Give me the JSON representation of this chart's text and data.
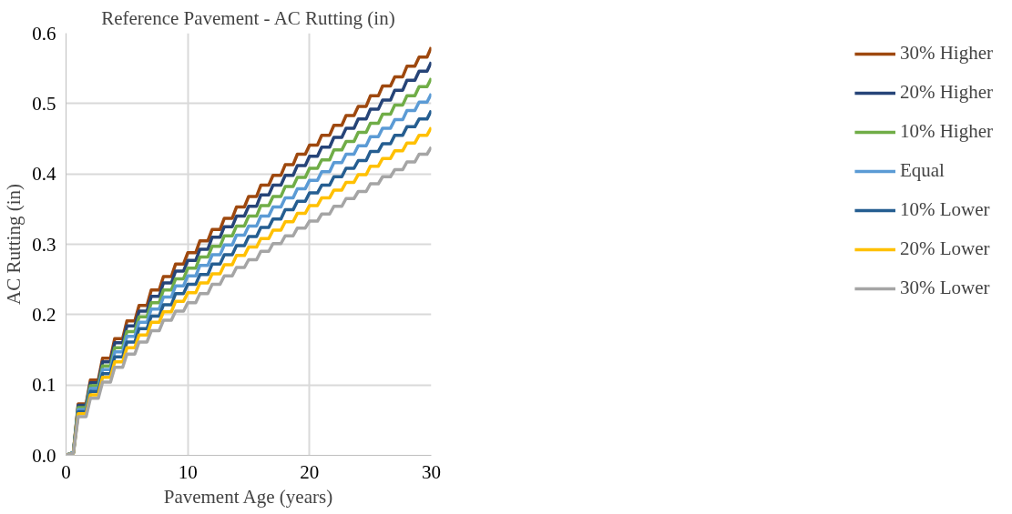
{
  "chart_data": {
    "type": "line",
    "title": "Reference Pavement - AC Rutting (in)",
    "xlabel": "Pavement Age (years)",
    "ylabel": "AC Rutting (in)",
    "x": [
      0,
      0.6,
      1,
      1.65,
      2,
      2.65,
      3,
      3.65,
      4,
      4.65,
      5,
      5.65,
      6,
      6.65,
      7,
      7.65,
      8,
      8.65,
      9,
      9.65,
      10,
      10.65,
      11,
      11.65,
      12,
      12.65,
      13,
      13.65,
      14,
      14.65,
      15,
      15.65,
      16,
      16.65,
      17,
      17.65,
      18,
      18.65,
      19,
      19.65,
      20,
      20.65,
      21,
      21.65,
      22,
      22.65,
      23,
      23.65,
      24,
      24.65,
      25,
      25.65,
      26,
      26.65,
      27,
      27.65,
      28,
      28.65,
      29,
      29.65,
      30
    ],
    "xlim": [
      0,
      30
    ],
    "xticks": [
      0,
      10,
      20,
      30
    ],
    "ylim": [
      0,
      0.6
    ],
    "yticks": [
      {
        "value": 0,
        "label": "0.0"
      },
      {
        "value": 0.1,
        "label": "0.1"
      },
      {
        "value": 0.2,
        "label": "0.2"
      },
      {
        "value": 0.3,
        "label": "0.3"
      },
      {
        "value": 0.4,
        "label": "0.4"
      },
      {
        "value": 0.5,
        "label": "0.5"
      },
      {
        "value": 0.6,
        "label": "0.6"
      }
    ],
    "grid": true,
    "legend": "right",
    "line_style": "solid",
    "marker": "none",
    "series": [
      {
        "name": "30% Higher",
        "color": "#9e480e",
        "values": [
          0,
          0.004,
          0.073,
          0.073,
          0.107,
          0.107,
          0.138,
          0.138,
          0.166,
          0.166,
          0.191,
          0.191,
          0.213,
          0.213,
          0.235,
          0.235,
          0.254,
          0.254,
          0.272,
          0.272,
          0.288,
          0.288,
          0.305,
          0.305,
          0.321,
          0.321,
          0.337,
          0.337,
          0.353,
          0.353,
          0.368,
          0.368,
          0.384,
          0.384,
          0.398,
          0.398,
          0.413,
          0.413,
          0.428,
          0.428,
          0.441,
          0.441,
          0.455,
          0.455,
          0.469,
          0.469,
          0.483,
          0.483,
          0.496,
          0.496,
          0.511,
          0.511,
          0.525,
          0.525,
          0.538,
          0.538,
          0.553,
          0.553,
          0.566,
          0.566,
          0.58
        ]
      },
      {
        "name": "20% Higher",
        "color": "#264478",
        "values": [
          0,
          0.004,
          0.071,
          0.071,
          0.103,
          0.103,
          0.133,
          0.133,
          0.16,
          0.16,
          0.184,
          0.184,
          0.205,
          0.205,
          0.226,
          0.226,
          0.245,
          0.245,
          0.262,
          0.262,
          0.277,
          0.277,
          0.293,
          0.293,
          0.31,
          0.31,
          0.325,
          0.325,
          0.34,
          0.34,
          0.354,
          0.354,
          0.37,
          0.37,
          0.384,
          0.384,
          0.398,
          0.398,
          0.412,
          0.412,
          0.425,
          0.425,
          0.438,
          0.438,
          0.452,
          0.452,
          0.465,
          0.465,
          0.478,
          0.478,
          0.492,
          0.492,
          0.505,
          0.505,
          0.519,
          0.519,
          0.533,
          0.533,
          0.546,
          0.546,
          0.559
        ]
      },
      {
        "name": "10% Higher",
        "color": "#70ad47",
        "values": [
          0,
          0.004,
          0.068,
          0.068,
          0.099,
          0.099,
          0.127,
          0.127,
          0.153,
          0.153,
          0.176,
          0.176,
          0.197,
          0.197,
          0.217,
          0.217,
          0.235,
          0.235,
          0.251,
          0.251,
          0.266,
          0.266,
          0.282,
          0.282,
          0.297,
          0.297,
          0.312,
          0.312,
          0.326,
          0.326,
          0.34,
          0.34,
          0.355,
          0.355,
          0.368,
          0.368,
          0.382,
          0.382,
          0.395,
          0.395,
          0.408,
          0.408,
          0.42,
          0.42,
          0.434,
          0.434,
          0.446,
          0.446,
          0.459,
          0.459,
          0.472,
          0.472,
          0.485,
          0.485,
          0.498,
          0.498,
          0.511,
          0.511,
          0.524,
          0.524,
          0.536
        ]
      },
      {
        "name": "Equal",
        "color": "#5b9bd5",
        "values": [
          0,
          0.004,
          0.065,
          0.065,
          0.095,
          0.095,
          0.122,
          0.122,
          0.147,
          0.147,
          0.169,
          0.169,
          0.189,
          0.189,
          0.208,
          0.208,
          0.225,
          0.225,
          0.241,
          0.241,
          0.255,
          0.255,
          0.27,
          0.27,
          0.285,
          0.285,
          0.299,
          0.299,
          0.313,
          0.313,
          0.326,
          0.326,
          0.34,
          0.34,
          0.353,
          0.353,
          0.366,
          0.366,
          0.379,
          0.379,
          0.391,
          0.391,
          0.403,
          0.403,
          0.416,
          0.416,
          0.428,
          0.428,
          0.44,
          0.44,
          0.453,
          0.453,
          0.465,
          0.465,
          0.477,
          0.477,
          0.49,
          0.49,
          0.502,
          0.502,
          0.514
        ]
      },
      {
        "name": "10% Lower",
        "color": "#255e91",
        "values": [
          0,
          0.003,
          0.062,
          0.062,
          0.091,
          0.091,
          0.116,
          0.116,
          0.14,
          0.14,
          0.161,
          0.161,
          0.18,
          0.18,
          0.198,
          0.198,
          0.214,
          0.214,
          0.23,
          0.23,
          0.243,
          0.243,
          0.257,
          0.257,
          0.272,
          0.272,
          0.285,
          0.285,
          0.298,
          0.298,
          0.311,
          0.311,
          0.324,
          0.324,
          0.336,
          0.336,
          0.349,
          0.349,
          0.361,
          0.361,
          0.373,
          0.373,
          0.384,
          0.384,
          0.396,
          0.396,
          0.408,
          0.408,
          0.419,
          0.419,
          0.432,
          0.432,
          0.443,
          0.443,
          0.455,
          0.455,
          0.467,
          0.467,
          0.478,
          0.478,
          0.49
        ]
      },
      {
        "name": "20% Lower",
        "color": "#ffc000",
        "values": [
          0,
          0.003,
          0.059,
          0.059,
          0.086,
          0.086,
          0.111,
          0.111,
          0.133,
          0.133,
          0.153,
          0.153,
          0.171,
          0.171,
          0.189,
          0.189,
          0.204,
          0.204,
          0.219,
          0.219,
          0.231,
          0.231,
          0.245,
          0.245,
          0.258,
          0.258,
          0.271,
          0.271,
          0.284,
          0.284,
          0.296,
          0.296,
          0.308,
          0.308,
          0.32,
          0.32,
          0.332,
          0.332,
          0.344,
          0.344,
          0.355,
          0.355,
          0.366,
          0.366,
          0.377,
          0.377,
          0.388,
          0.388,
          0.399,
          0.399,
          0.411,
          0.411,
          0.422,
          0.422,
          0.433,
          0.433,
          0.444,
          0.444,
          0.455,
          0.455,
          0.466
        ]
      },
      {
        "name": "30% Lower",
        "color": "#a5a5a5",
        "values": [
          0,
          0.003,
          0.055,
          0.055,
          0.081,
          0.081,
          0.104,
          0.104,
          0.125,
          0.125,
          0.144,
          0.144,
          0.161,
          0.161,
          0.177,
          0.177,
          0.192,
          0.192,
          0.205,
          0.205,
          0.217,
          0.217,
          0.23,
          0.23,
          0.243,
          0.243,
          0.255,
          0.255,
          0.267,
          0.267,
          0.278,
          0.278,
          0.29,
          0.29,
          0.301,
          0.301,
          0.312,
          0.312,
          0.323,
          0.323,
          0.333,
          0.333,
          0.343,
          0.343,
          0.354,
          0.354,
          0.365,
          0.365,
          0.375,
          0.375,
          0.386,
          0.386,
          0.396,
          0.396,
          0.406,
          0.406,
          0.417,
          0.417,
          0.428,
          0.428,
          0.438
        ]
      }
    ]
  }
}
